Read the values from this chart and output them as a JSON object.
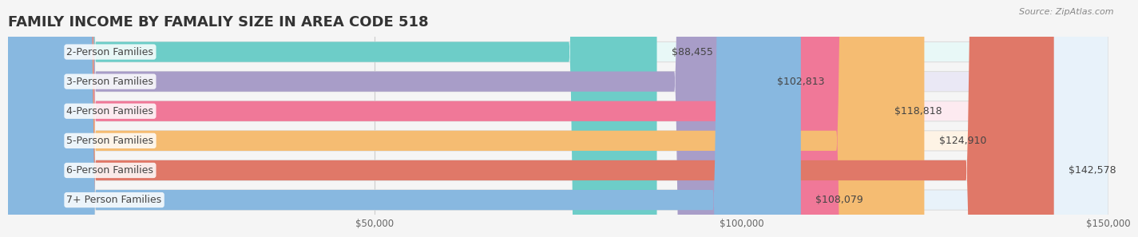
{
  "title": "FAMILY INCOME BY FAMALIY SIZE IN AREA CODE 518",
  "source": "Source: ZipAtlas.com",
  "categories": [
    "2-Person Families",
    "3-Person Families",
    "4-Person Families",
    "5-Person Families",
    "6-Person Families",
    "7+ Person Families"
  ],
  "values": [
    88455,
    102813,
    118818,
    124910,
    142578,
    108079
  ],
  "bar_colors": [
    "#6DCDC8",
    "#A89DC8",
    "#F07898",
    "#F5BC72",
    "#E07868",
    "#88B8E0"
  ],
  "bar_bg_colors": [
    "#E8F8F7",
    "#EAE8F5",
    "#FDEAF0",
    "#FEF3E5",
    "#FAEAE8",
    "#E8F2FA"
  ],
  "value_labels": [
    "$88,455",
    "$102,813",
    "$118,818",
    "$124,910",
    "$142,578",
    "$108,079"
  ],
  "xlim": [
    0,
    150000
  ],
  "xticks": [
    0,
    50000,
    100000,
    150000
  ],
  "xtick_labels": [
    "",
    "$50,000",
    "$100,000",
    "$150,000"
  ],
  "background_color": "#f5f5f5",
  "bar_height": 0.68,
  "title_fontsize": 13,
  "label_fontsize": 9,
  "value_fontsize": 9
}
